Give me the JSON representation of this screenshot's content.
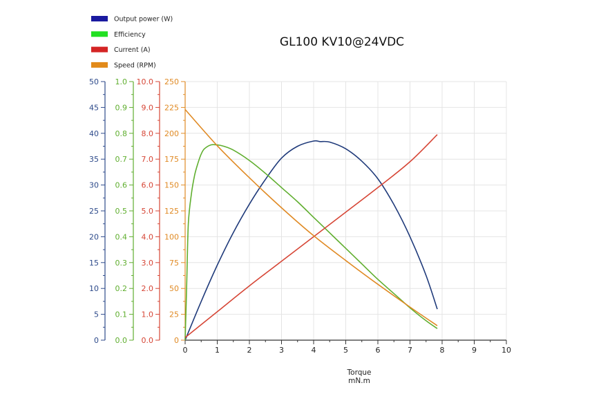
{
  "chart_data": {
    "type": "line",
    "title": "GL100 KV10@24VDC",
    "xlabel": "Torque",
    "xunit": "mN.m",
    "xlim": [
      0,
      10
    ],
    "x_ticks": [
      "0",
      "1",
      "2",
      "3",
      "4",
      "5",
      "6",
      "7",
      "8",
      "9",
      "10"
    ],
    "grid": true,
    "legend_position": "top-left",
    "y_axes": [
      {
        "key": "power",
        "ticks": [
          "0",
          "5",
          "10",
          "15",
          "20",
          "25",
          "30",
          "35",
          "40",
          "45",
          "50"
        ],
        "range": [
          0,
          50
        ],
        "color": "#2d4a8a"
      },
      {
        "key": "efficiency",
        "ticks": [
          "0.0",
          "0.1",
          "0.2",
          "0.3",
          "0.4",
          "0.5",
          "0.6",
          "0.7",
          "0.8",
          "0.9",
          "1.0"
        ],
        "range": [
          0,
          1
        ],
        "color": "#5fae2e"
      },
      {
        "key": "current",
        "ticks": [
          "0.0",
          "1.0",
          "2.0",
          "3.0",
          "4.0",
          "5.0",
          "6.0",
          "7.0",
          "8.0",
          "9.0",
          "10.0"
        ],
        "range": [
          0,
          10
        ],
        "color": "#d64535"
      },
      {
        "key": "speed",
        "ticks": [
          "0",
          "25",
          "50",
          "75",
          "100",
          "125",
          "150",
          "175",
          "200",
          "225",
          "250"
        ],
        "range": [
          0,
          250
        ],
        "color": "#e08a24"
      }
    ],
    "series": [
      {
        "name": "Output power (W)",
        "axis": "power",
        "color": "#1f3a7a",
        "legend_color": "#1a1aa0",
        "x": [
          0,
          0.5,
          1,
          1.5,
          2,
          2.5,
          3,
          3.5,
          4,
          4.2,
          4.5,
          5,
          5.5,
          6,
          6.5,
          7,
          7.5,
          7.85
        ],
        "y": [
          0,
          7.5,
          14.5,
          20.8,
          26.3,
          31.1,
          35.2,
          37.5,
          38.5,
          38.4,
          38.3,
          37.0,
          34.6,
          31.2,
          26.2,
          20.0,
          12.5,
          6.0
        ]
      },
      {
        "name": "Efficiency",
        "axis": "efficiency",
        "color": "#5fae2e",
        "legend_color": "#22e022",
        "x": [
          0,
          0.05,
          0.1,
          0.2,
          0.3,
          0.4,
          0.5,
          0.6,
          0.8,
          1.0,
          1.2,
          1.5,
          2,
          2.5,
          3,
          3.5,
          4,
          4.5,
          5,
          5.5,
          6,
          6.5,
          7,
          7.5,
          7.85
        ],
        "y": [
          0,
          0.22,
          0.45,
          0.57,
          0.64,
          0.685,
          0.72,
          0.74,
          0.755,
          0.755,
          0.75,
          0.735,
          0.695,
          0.645,
          0.59,
          0.535,
          0.475,
          0.415,
          0.355,
          0.295,
          0.235,
          0.18,
          0.125,
          0.075,
          0.045
        ]
      },
      {
        "name": "Current (A)",
        "axis": "current",
        "color": "#d64535",
        "legend_color": "#d42424",
        "x": [
          0,
          1,
          2,
          3,
          4,
          5,
          6,
          7,
          7.85
        ],
        "y": [
          0.1,
          1.1,
          2.1,
          3.05,
          4.0,
          4.95,
          5.9,
          6.9,
          7.95
        ]
      },
      {
        "name": "Speed (RPM)",
        "axis": "speed",
        "color": "#e08a24",
        "legend_color": "#e28a1a",
        "x": [
          0,
          1,
          2,
          3,
          4,
          5,
          6,
          7,
          7.85
        ],
        "y": [
          223,
          188,
          157,
          128,
          101,
          77,
          54,
          32,
          14
        ]
      }
    ]
  }
}
